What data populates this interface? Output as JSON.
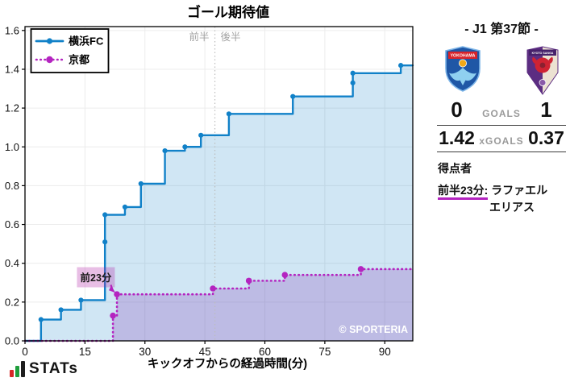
{
  "colors": {
    "home": "#1181c8",
    "away": "#b424c0",
    "annotation_bg": "rgba(180,40,170,0.30)",
    "grid": "#ececec"
  },
  "chart_data": {
    "type": "step-line",
    "title": "ゴール期待値",
    "xlabel": "キックオフからの経過時間(分)",
    "xlim": [
      0,
      97
    ],
    "ylim": [
      0,
      1.62
    ],
    "xticks": [
      0,
      15,
      30,
      45,
      60,
      75,
      90
    ],
    "ytick_labels": [
      "0.0",
      "0.2",
      "0.4",
      "0.6",
      "0.8",
      "1.0",
      "1.2",
      "1.4",
      "1.6"
    ],
    "ytick_step": 0.2,
    "grid": true,
    "legend_position": "upper-left",
    "halftime": {
      "x": 47.5,
      "first_label": "前半",
      "second_label": "後半"
    },
    "series": [
      {
        "name": "横浜FC",
        "color": "#1181c8",
        "fill": "rgba(18,129,200,0.20)",
        "dash": "solid",
        "final": 1.42,
        "events": [
          [
            4,
            0.11
          ],
          [
            9,
            0.16
          ],
          [
            14,
            0.21
          ],
          [
            20,
            0.51
          ],
          [
            20,
            0.65
          ],
          [
            25,
            0.69
          ],
          [
            29,
            0.81
          ],
          [
            35,
            0.98
          ],
          [
            40,
            1.0
          ],
          [
            44,
            1.06
          ],
          [
            51,
            1.17
          ],
          [
            67,
            1.26
          ],
          [
            82,
            1.33
          ],
          [
            82,
            1.38
          ],
          [
            94,
            1.42
          ]
        ]
      },
      {
        "name": "京都",
        "color": "#b424c0",
        "fill": "rgba(137,66,180,0.26)",
        "dash": "dotted",
        "final": 0.37,
        "events": [
          [
            22,
            0.13
          ],
          [
            23,
            0.24
          ],
          [
            47,
            0.27
          ],
          [
            56,
            0.31
          ],
          [
            65,
            0.34
          ],
          [
            84,
            0.37
          ]
        ]
      }
    ],
    "annotation": {
      "text": "前23分",
      "target": [
        23,
        0.24
      ],
      "box_pos": [
        13,
        0.38
      ]
    },
    "watermark": "© SPORTERIA"
  },
  "sidebar": {
    "title": "- J1 第37節 -",
    "home": {
      "name": "横浜FC",
      "logo_text": "YOKOHAMA"
    },
    "away": {
      "name": "京都",
      "logo_text": "KYOTO SANGA"
    },
    "goals": {
      "home": "0",
      "label": "GOALS",
      "away": "1"
    },
    "xgoals": {
      "home": "1.42",
      "label": "xGOALS",
      "away": "0.37"
    },
    "scorers_heading": "得点者",
    "scorer": {
      "time": "前半23分:",
      "name_line1": "ラファエル",
      "name_line2": "エリアス"
    }
  },
  "footer": {
    "brand": "STATs"
  }
}
